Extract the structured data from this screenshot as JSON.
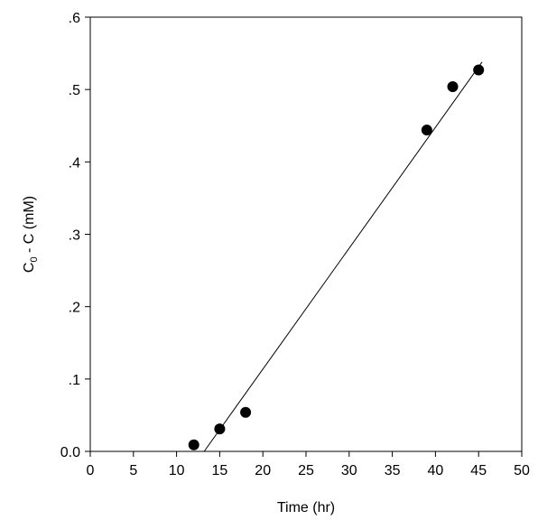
{
  "chart_data": {
    "type": "scatter",
    "title": "",
    "xlabel": "Time (hr)",
    "ylabel_main": "C",
    "ylabel_sub": "0",
    "ylabel_rest": " - C (mM)",
    "xlim": [
      0,
      50
    ],
    "ylim": [
      0,
      0.6
    ],
    "x_ticks": [
      0,
      5,
      10,
      15,
      20,
      25,
      30,
      35,
      40,
      45,
      50
    ],
    "x_tick_labels": [
      "0",
      "5",
      "10",
      "15",
      "20",
      "25",
      "30",
      "35",
      "40",
      "45",
      "50"
    ],
    "y_ticks": [
      0,
      0.1,
      0.2,
      0.3,
      0.4,
      0.5,
      0.6
    ],
    "y_tick_labels": [
      "0.0",
      ".1",
      ".2",
      ".3",
      ".4",
      ".5",
      ".6"
    ],
    "grid": false,
    "legend": "none",
    "series": [
      {
        "type": "scatter",
        "x": [
          12,
          15,
          18,
          39,
          42,
          45
        ],
        "y": [
          0.009,
          0.031,
          0.054,
          0.444,
          0.504,
          0.527
        ]
      },
      {
        "type": "line",
        "fit": "linear",
        "x": [
          13.2,
          45.4
        ],
        "y": [
          0.0,
          0.538
        ]
      }
    ],
    "colors": {
      "marker": "#000000",
      "line": "#000000",
      "axis": "#000000"
    }
  }
}
